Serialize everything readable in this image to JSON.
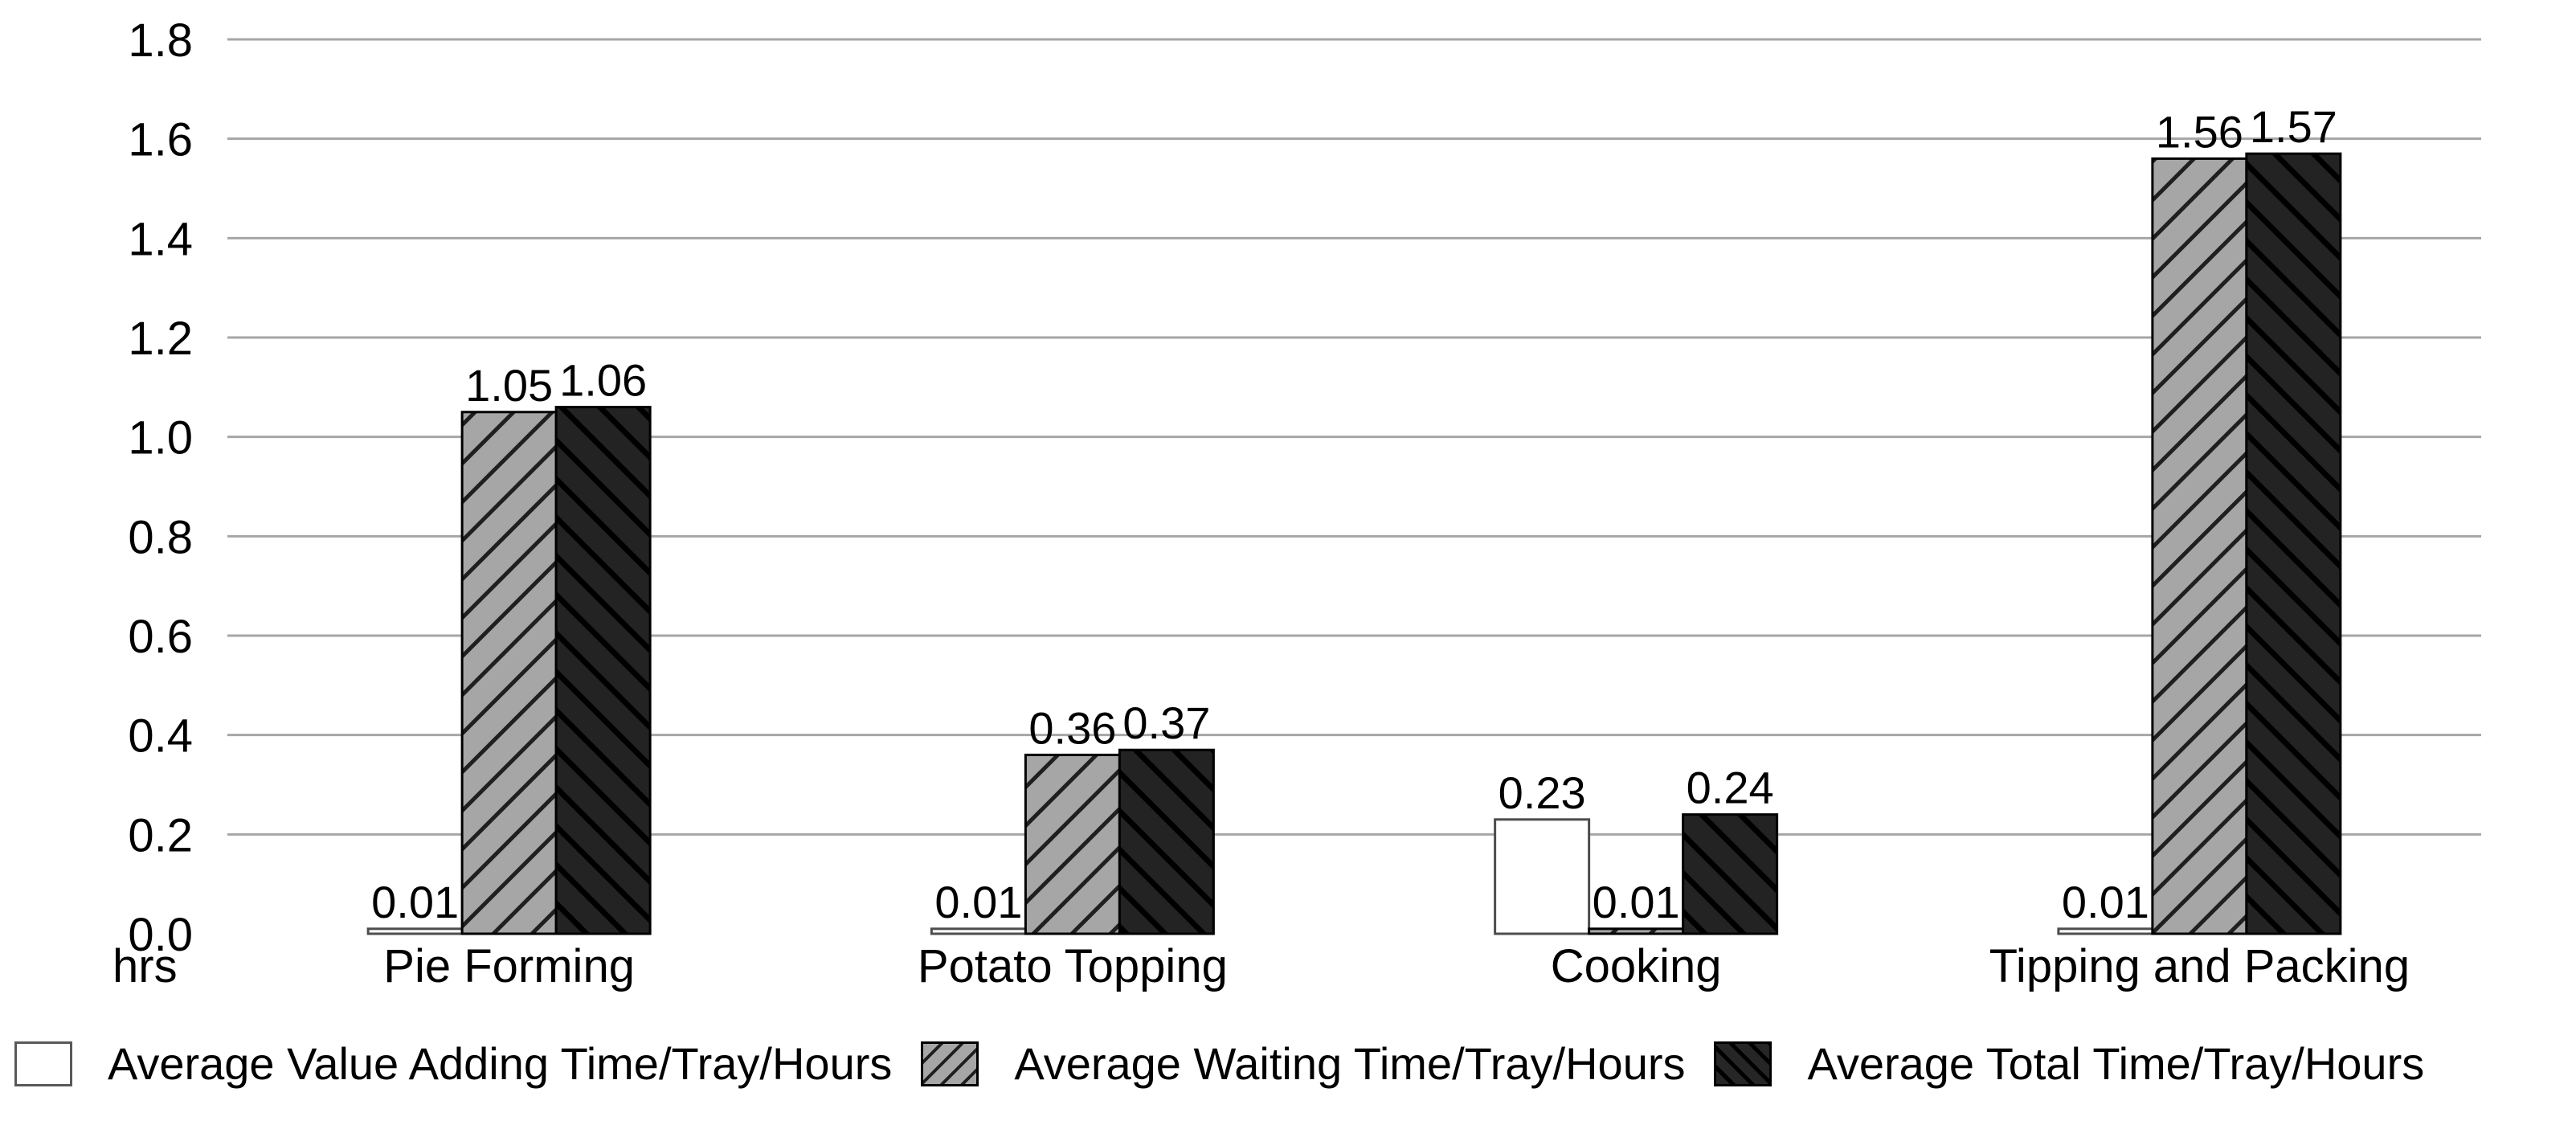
{
  "chart_data": {
    "type": "bar",
    "unit_label": "hrs",
    "categories": [
      "Pie Forming",
      "Potato Topping",
      "Cooking",
      "Tipping and Packing"
    ],
    "series": [
      {
        "name": "Average Value Adding Time/Tray/Hours",
        "style": "white",
        "values": [
          0.01,
          0.01,
          0.23,
          0.01
        ]
      },
      {
        "name": "Average Waiting Time/Tray/Hours",
        "style": "gray-hatch",
        "values": [
          1.05,
          0.36,
          0.01,
          1.56
        ]
      },
      {
        "name": "Average Total Time/Tray/Hours",
        "style": "black-hatch",
        "values": [
          1.06,
          0.37,
          0.24,
          1.57
        ]
      }
    ],
    "data_labels": [
      "0.01",
      "1.05",
      "1.06",
      "0.01",
      "0.36",
      "0.37",
      "0.23",
      "0.01",
      "0.24",
      "0.01",
      "1.56",
      "1.57"
    ],
    "yticks": [
      "0.0",
      "0.2",
      "0.4",
      "0.6",
      "0.8",
      "1.0",
      "1.2",
      "1.4",
      "1.6",
      "1.8"
    ],
    "ylim": [
      0,
      1.8
    ],
    "ytick_step": 0.2,
    "grid": "horizontal",
    "legend_position": "bottom",
    "colors": {
      "bar_white": "#ffffff",
      "bar_white_border": "#4d4d4d",
      "bar_gray": "#a6a6a6",
      "bar_gray_hatch": "#1f1f1f",
      "bar_black": "#232323",
      "bar_black_hatch": "#000000",
      "gridline": "#a6a6a6",
      "text": "#000000"
    }
  }
}
